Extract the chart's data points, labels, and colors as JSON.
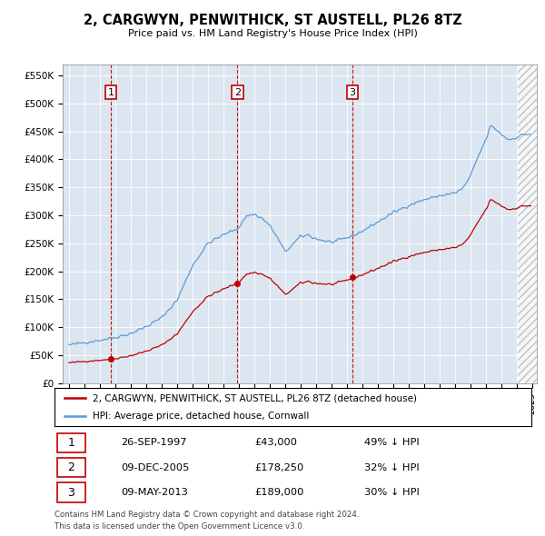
{
  "title": "2, CARGWYN, PENWITHICK, ST AUSTELL, PL26 8TZ",
  "subtitle": "Price paid vs. HM Land Registry's House Price Index (HPI)",
  "ylim": [
    0,
    570000
  ],
  "yticks": [
    0,
    50000,
    100000,
    150000,
    200000,
    250000,
    300000,
    350000,
    400000,
    450000,
    500000,
    550000
  ],
  "ytick_labels": [
    "£0",
    "£50K",
    "£100K",
    "£150K",
    "£200K",
    "£250K",
    "£300K",
    "£350K",
    "£400K",
    "£450K",
    "£500K",
    "£550K"
  ],
  "hpi_color": "#5b9bd5",
  "price_color": "#c00000",
  "bg_color": "#ffffff",
  "chart_bg": "#dce6f1",
  "grid_color": "#ffffff",
  "sale_year_floats": [
    1997.73,
    2005.92,
    2013.36
  ],
  "sale_prices": [
    43000,
    178250,
    189000
  ],
  "sale_labels": [
    "1",
    "2",
    "3"
  ],
  "sale_hpi_pct": [
    "49% ↓ HPI",
    "32% ↓ HPI",
    "30% ↓ HPI"
  ],
  "sale_dates_str": [
    "26-SEP-1997",
    "09-DEC-2005",
    "09-MAY-2013"
  ],
  "sale_prices_str": [
    "£43,000",
    "£178,250",
    "£189,000"
  ],
  "legend_line1": "2, CARGWYN, PENWITHICK, ST AUSTELL, PL26 8TZ (detached house)",
  "legend_line2": "HPI: Average price, detached house, Cornwall",
  "footnote1": "Contains HM Land Registry data © Crown copyright and database right 2024.",
  "footnote2": "This data is licensed under the Open Government Licence v3.0."
}
